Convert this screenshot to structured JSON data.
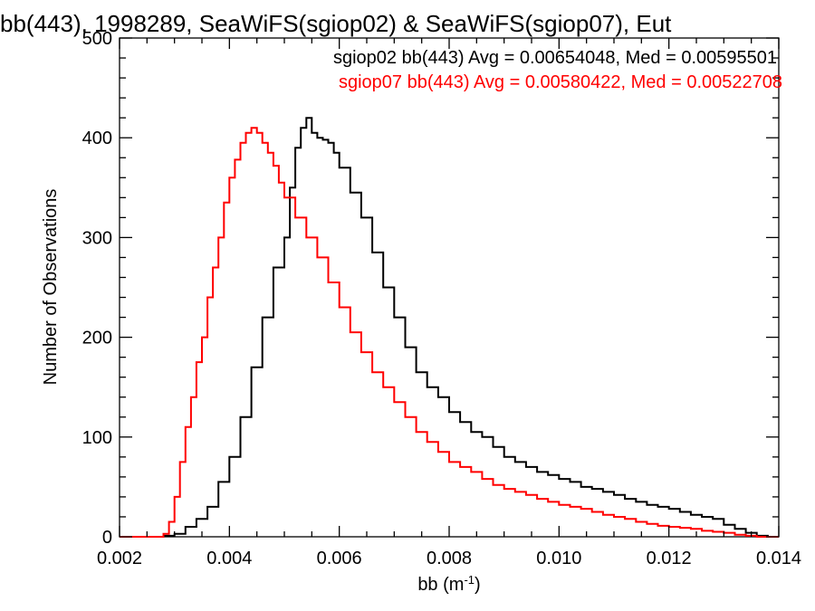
{
  "chart_data": {
    "type": "histogram",
    "title": "bb(443), 1998289, SeaWiFS(sgiop02) & SeaWiFS(sgiop07), Eut",
    "xlabel_base": "bb (m",
    "xlabel_sup": "-1",
    "xlabel_end": ")",
    "ylabel": "Number of Observations",
    "xlim": [
      0.002,
      0.014
    ],
    "ylim": [
      0,
      500
    ],
    "xticks": [
      {
        "value": 0.002,
        "label": "0.002"
      },
      {
        "value": 0.004,
        "label": "0.004"
      },
      {
        "value": 0.006,
        "label": "0.006"
      },
      {
        "value": 0.008,
        "label": "0.008"
      },
      {
        "value": 0.01,
        "label": "0.010"
      },
      {
        "value": 0.012,
        "label": "0.012"
      },
      {
        "value": 0.014,
        "label": "0.014"
      }
    ],
    "yticks": [
      {
        "value": 0,
        "label": "0"
      },
      {
        "value": 100,
        "label": "100"
      },
      {
        "value": 200,
        "label": "200"
      },
      {
        "value": 300,
        "label": "300"
      },
      {
        "value": 400,
        "label": "400"
      },
      {
        "value": 500,
        "label": "500"
      }
    ],
    "series": [
      {
        "name": "sgiop02",
        "color": "#000000",
        "stats_label": "sgiop02 bb(443) Avg = 0.00654048, Med = 0.00595501",
        "points": [
          [
            0.002,
            0
          ],
          [
            0.0025,
            0
          ],
          [
            0.0028,
            1
          ],
          [
            0.003,
            3
          ],
          [
            0.0032,
            10
          ],
          [
            0.0034,
            18
          ],
          [
            0.0036,
            30
          ],
          [
            0.0038,
            55
          ],
          [
            0.004,
            80
          ],
          [
            0.0042,
            120
          ],
          [
            0.0044,
            170
          ],
          [
            0.0046,
            220
          ],
          [
            0.0048,
            270
          ],
          [
            0.005,
            300
          ],
          [
            0.0051,
            350
          ],
          [
            0.0052,
            390
          ],
          [
            0.0053,
            410
          ],
          [
            0.0054,
            420
          ],
          [
            0.0055,
            405
          ],
          [
            0.0056,
            400
          ],
          [
            0.0057,
            398
          ],
          [
            0.0058,
            395
          ],
          [
            0.0059,
            385
          ],
          [
            0.006,
            370
          ],
          [
            0.0062,
            345
          ],
          [
            0.0064,
            320
          ],
          [
            0.0066,
            285
          ],
          [
            0.0068,
            250
          ],
          [
            0.007,
            220
          ],
          [
            0.0072,
            190
          ],
          [
            0.0074,
            165
          ],
          [
            0.0076,
            150
          ],
          [
            0.0078,
            140
          ],
          [
            0.008,
            125
          ],
          [
            0.0082,
            115
          ],
          [
            0.0084,
            105
          ],
          [
            0.0086,
            100
          ],
          [
            0.0088,
            90
          ],
          [
            0.009,
            80
          ],
          [
            0.0092,
            75
          ],
          [
            0.0094,
            70
          ],
          [
            0.0096,
            65
          ],
          [
            0.0098,
            62
          ],
          [
            0.01,
            58
          ],
          [
            0.0102,
            55
          ],
          [
            0.0104,
            50
          ],
          [
            0.0106,
            48
          ],
          [
            0.0108,
            45
          ],
          [
            0.011,
            42
          ],
          [
            0.0112,
            38
          ],
          [
            0.0114,
            35
          ],
          [
            0.0116,
            32
          ],
          [
            0.0118,
            30
          ],
          [
            0.012,
            28
          ],
          [
            0.0122,
            25
          ],
          [
            0.0124,
            22
          ],
          [
            0.0126,
            20
          ],
          [
            0.0128,
            18
          ],
          [
            0.013,
            12
          ],
          [
            0.0132,
            8
          ],
          [
            0.0134,
            4
          ],
          [
            0.0136,
            1
          ],
          [
            0.0138,
            0
          ],
          [
            0.014,
            0
          ]
        ]
      },
      {
        "name": "sgiop07",
        "color": "#ff0000",
        "stats_label": "sgiop07 bb(443) Avg = 0.00580422, Med = 0.00522708",
        "points": [
          [
            0.002,
            0
          ],
          [
            0.0026,
            0
          ],
          [
            0.0028,
            3
          ],
          [
            0.0029,
            15
          ],
          [
            0.003,
            40
          ],
          [
            0.0031,
            75
          ],
          [
            0.0032,
            110
          ],
          [
            0.0033,
            140
          ],
          [
            0.0034,
            175
          ],
          [
            0.0035,
            200
          ],
          [
            0.0036,
            240
          ],
          [
            0.0037,
            270
          ],
          [
            0.0038,
            300
          ],
          [
            0.0039,
            335
          ],
          [
            0.004,
            360
          ],
          [
            0.0041,
            378
          ],
          [
            0.0042,
            395
          ],
          [
            0.0043,
            405
          ],
          [
            0.0044,
            410
          ],
          [
            0.0045,
            405
          ],
          [
            0.0046,
            395
          ],
          [
            0.0047,
            385
          ],
          [
            0.0048,
            372
          ],
          [
            0.0049,
            355
          ],
          [
            0.005,
            340
          ],
          [
            0.0052,
            320
          ],
          [
            0.0054,
            300
          ],
          [
            0.0056,
            280
          ],
          [
            0.0058,
            255
          ],
          [
            0.006,
            230
          ],
          [
            0.0062,
            205
          ],
          [
            0.0064,
            185
          ],
          [
            0.0066,
            165
          ],
          [
            0.0068,
            150
          ],
          [
            0.007,
            135
          ],
          [
            0.0072,
            120
          ],
          [
            0.0074,
            105
          ],
          [
            0.0076,
            95
          ],
          [
            0.0078,
            85
          ],
          [
            0.008,
            75
          ],
          [
            0.0082,
            70
          ],
          [
            0.0084,
            65
          ],
          [
            0.0086,
            58
          ],
          [
            0.0088,
            52
          ],
          [
            0.009,
            48
          ],
          [
            0.0092,
            45
          ],
          [
            0.0094,
            42
          ],
          [
            0.0096,
            38
          ],
          [
            0.0098,
            35
          ],
          [
            0.01,
            32
          ],
          [
            0.0102,
            30
          ],
          [
            0.0104,
            28
          ],
          [
            0.0106,
            25
          ],
          [
            0.0108,
            22
          ],
          [
            0.011,
            20
          ],
          [
            0.0112,
            18
          ],
          [
            0.0114,
            15
          ],
          [
            0.0116,
            13
          ],
          [
            0.0118,
            11
          ],
          [
            0.012,
            10
          ],
          [
            0.0122,
            9
          ],
          [
            0.0124,
            8
          ],
          [
            0.0126,
            6
          ],
          [
            0.0128,
            5
          ],
          [
            0.013,
            4
          ],
          [
            0.0132,
            2
          ],
          [
            0.0134,
            1
          ],
          [
            0.0136,
            0
          ],
          [
            0.014,
            0
          ]
        ]
      }
    ]
  }
}
